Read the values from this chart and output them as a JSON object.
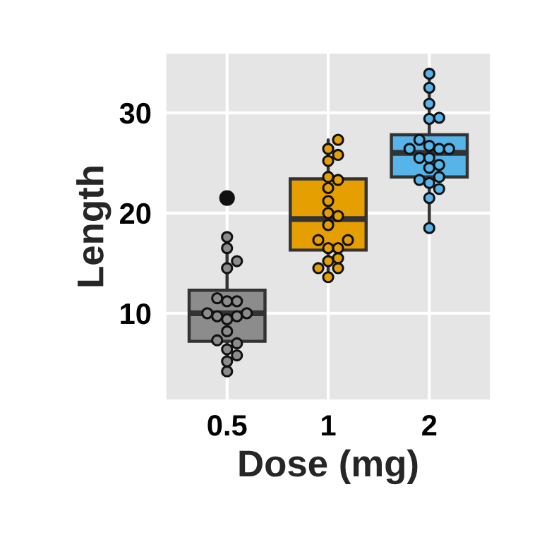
{
  "chart_data": {
    "type": "box",
    "xlabel": "Dose (mg)",
    "ylabel": "Length",
    "categories": [
      "0.5",
      "1",
      "2"
    ],
    "colors": [
      "#8c8c8c",
      "#e69f00",
      "#56b4e9"
    ],
    "boxes": [
      {
        "low": 4.2,
        "q1": 7.2,
        "median": 10,
        "q3": 12.3,
        "high": 17.6,
        "outliers": [
          21.5
        ]
      },
      {
        "low": 13.6,
        "q1": 16.3,
        "median": 19.4,
        "q3": 23.4,
        "high": 27.3
      },
      {
        "low": 18.5,
        "q1": 23.6,
        "median": 26,
        "q3": 27.8,
        "high": 33.9
      }
    ],
    "series": [
      {
        "type": "scatter",
        "color": "#8c8c8c",
        "x": [
          "0.5",
          "0.5",
          "0.5",
          "0.5",
          "0.5",
          "0.5",
          "0.5",
          "0.5",
          "0.5",
          "0.5",
          "0.5",
          "0.5",
          "0.5",
          "0.5",
          "0.5",
          "0.5",
          "0.5",
          "0.5",
          "0.5"
        ],
        "values": [
          4.2,
          11.5,
          7.3,
          5.8,
          6.4,
          10,
          11.2,
          11.2,
          5.2,
          7,
          15.2,
          17.6,
          9.7,
          14.5,
          10,
          8.2,
          9.4,
          16.5,
          9.7
        ]
      },
      {
        "type": "scatter",
        "color": "#e69f00",
        "x": [
          "1",
          "1",
          "1",
          "1",
          "1",
          "1",
          "1",
          "1",
          "1",
          "1",
          "1",
          "1",
          "1",
          "1",
          "1",
          "1",
          "1",
          "1",
          "1",
          "1"
        ],
        "values": [
          16.5,
          16.5,
          15.2,
          17.3,
          22.5,
          17.3,
          13.6,
          14.5,
          18.8,
          15.5,
          19.7,
          23.3,
          23.6,
          26.4,
          20,
          25.2,
          25.8,
          21.2,
          14.5,
          27.3
        ]
      },
      {
        "type": "scatter",
        "color": "#56b4e9",
        "x": [
          "2",
          "2",
          "2",
          "2",
          "2",
          "2",
          "2",
          "2",
          "2",
          "2",
          "2",
          "2",
          "2",
          "2",
          "2",
          "2",
          "2",
          "2",
          "2",
          "2"
        ],
        "values": [
          23.6,
          18.5,
          33.9,
          25.5,
          26.4,
          32.5,
          26.7,
          21.5,
          23.3,
          29.5,
          25.5,
          26.4,
          22.4,
          24.5,
          24.8,
          30.9,
          26.4,
          27.3,
          29.4,
          23
        ]
      }
    ],
    "ylim": [
      1.4,
      35.9
    ],
    "yticks": [
      10,
      20,
      30
    ],
    "grid": true,
    "marker": "circle"
  }
}
